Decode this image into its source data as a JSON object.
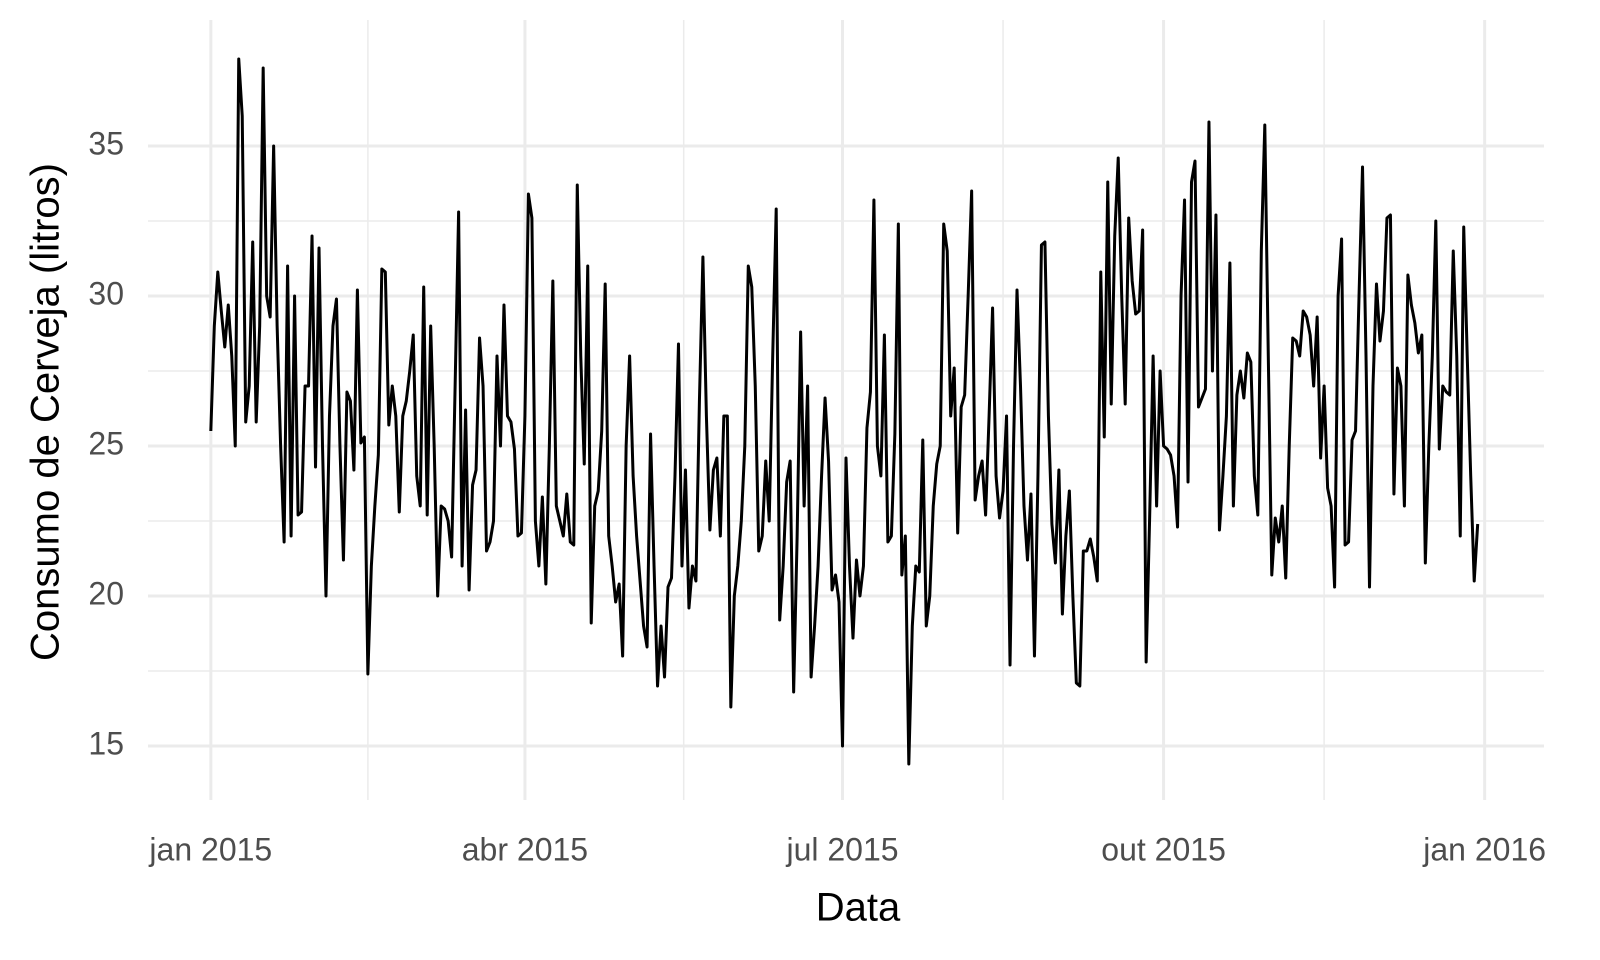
{
  "chart_data": {
    "type": "line",
    "x_label": "Data",
    "y_label": "Consumo de Cerveja (litros)",
    "color": "#000000",
    "grid": true,
    "x": [
      0,
      1,
      2,
      3,
      4,
      5,
      6,
      7,
      8,
      9,
      10,
      11,
      12,
      13,
      14,
      15,
      16,
      17,
      18,
      19,
      20,
      21,
      22,
      23,
      24,
      25,
      26,
      27,
      28,
      29,
      30,
      31,
      32,
      33,
      34,
      35,
      36,
      37,
      38,
      39,
      40,
      41,
      42,
      43,
      44,
      45,
      46,
      47,
      48,
      49,
      50,
      51,
      52,
      53,
      54,
      55,
      56,
      57,
      58,
      59,
      60,
      61,
      62,
      63,
      64,
      65,
      66,
      67,
      68,
      69,
      70,
      71,
      72,
      73,
      74,
      75,
      76,
      77,
      78,
      79,
      80,
      81,
      82,
      83,
      84,
      85,
      86,
      87,
      88,
      89,
      90,
      91,
      92,
      93,
      94,
      95,
      96,
      97,
      98,
      99,
      100,
      101,
      102,
      103,
      104,
      105,
      106,
      107,
      108,
      109,
      110,
      111,
      112,
      113,
      114,
      115,
      116,
      117,
      118,
      119,
      120,
      121,
      122,
      123,
      124,
      125,
      126,
      127,
      128,
      129,
      130,
      131,
      132,
      133,
      134,
      135,
      136,
      137,
      138,
      139,
      140,
      141,
      142,
      143,
      144,
      145,
      146,
      147,
      148,
      149,
      150,
      151,
      152,
      153,
      154,
      155,
      156,
      157,
      158,
      159,
      160,
      161,
      162,
      163,
      164,
      165,
      166,
      167,
      168,
      169,
      170,
      171,
      172,
      173,
      174,
      175,
      176,
      177,
      178,
      179,
      180,
      181,
      182,
      183,
      184,
      185,
      186,
      187,
      188,
      189,
      190,
      191,
      192,
      193,
      194,
      195,
      196,
      197,
      198,
      199,
      200,
      201,
      202,
      203,
      204,
      205,
      206,
      207,
      208,
      209,
      210,
      211,
      212,
      213,
      214,
      215,
      216,
      217,
      218,
      219,
      220,
      221,
      222,
      223,
      224,
      225,
      226,
      227,
      228,
      229,
      230,
      231,
      232,
      233,
      234,
      235,
      236,
      237,
      238,
      239,
      240,
      241,
      242,
      243,
      244,
      245,
      246,
      247,
      248,
      249,
      250,
      251,
      252,
      253,
      254,
      255,
      256,
      257,
      258,
      259,
      260,
      261,
      262,
      263,
      264,
      265,
      266,
      267,
      268,
      269,
      270,
      271,
      272,
      273,
      274,
      275,
      276,
      277,
      278,
      279,
      280,
      281,
      282,
      283,
      284,
      285,
      286,
      287,
      288,
      289,
      290,
      291,
      292,
      293,
      294,
      295,
      296,
      297,
      298,
      299,
      300,
      301,
      302,
      303,
      304,
      305,
      306,
      307,
      308,
      309,
      310,
      311,
      312,
      313,
      314,
      315,
      316,
      317,
      318,
      319,
      320,
      321,
      322,
      323,
      324,
      325,
      326,
      327,
      328,
      329,
      330,
      331,
      332,
      333,
      334,
      335,
      336,
      337,
      338,
      339,
      340,
      341,
      342,
      343,
      344,
      345,
      346,
      347,
      348,
      349,
      350,
      351,
      352,
      353,
      354,
      355,
      356,
      357,
      358,
      359,
      360,
      361,
      362,
      363
    ],
    "values": [
      25.5,
      29,
      30.8,
      29.5,
      28.3,
      29.7,
      28,
      25,
      37.9,
      36,
      25.8,
      27,
      31.8,
      25.8,
      29,
      37.6,
      30,
      29.3,
      35,
      29,
      25,
      21.8,
      31,
      22,
      30,
      22.7,
      22.8,
      27,
      27,
      32,
      24.3,
      31.6,
      25,
      20,
      26,
      29,
      29.9,
      25,
      21.2,
      26.8,
      26.5,
      24.2,
      30.2,
      25.1,
      25.3,
      17.4,
      21,
      23,
      24.7,
      30.9,
      30.8,
      25.7,
      27,
      26,
      22.8,
      26,
      26.5,
      27.5,
      28.7,
      24,
      23,
      30.3,
      22.7,
      29,
      25,
      20,
      23,
      22.9,
      22.5,
      21.3,
      27,
      32.8,
      21,
      26.2,
      20.2,
      23.7,
      24.2,
      28.6,
      27,
      21.5,
      21.8,
      22.5,
      28,
      25,
      29.7,
      26,
      25.8,
      24.9,
      22,
      22.1,
      26,
      33.4,
      32.6,
      22.5,
      21,
      23.3,
      20.4,
      25,
      30.5,
      23,
      22.5,
      22,
      23.4,
      21.8,
      21.7,
      33.7,
      28,
      24.4,
      31,
      19.1,
      23,
      23.5,
      25.5,
      30.4,
      22,
      21,
      19.8,
      20.4,
      18,
      25,
      28,
      24,
      22,
      20.5,
      19,
      18.3,
      25.4,
      21,
      17,
      19,
      17.3,
      20.3,
      20.6,
      24,
      28.4,
      21,
      24.2,
      19.6,
      21,
      20.5,
      26.5,
      31.3,
      26,
      22.2,
      24.2,
      24.6,
      22,
      26,
      26,
      16.3,
      20,
      21,
      22.5,
      25,
      31,
      30.3,
      27,
      21.5,
      22,
      24.5,
      22.5,
      28,
      32.9,
      19.2,
      21,
      23.8,
      24.5,
      16.8,
      22,
      28.8,
      23,
      27,
      17.3,
      19,
      21,
      24,
      26.6,
      24.5,
      20.2,
      20.7,
      19.8,
      15,
      24.6,
      21,
      18.6,
      21.2,
      20,
      21,
      25.6,
      26.8,
      33.2,
      25,
      24,
      28.7,
      21.8,
      22,
      25.4,
      32.4,
      20.7,
      22,
      14.4,
      19,
      21,
      20.8,
      25.2,
      19,
      20,
      23,
      24.4,
      25,
      32.4,
      31.5,
      26,
      27.6,
      22.1,
      26.3,
      26.7,
      30,
      33.5,
      23.2,
      24,
      24.5,
      22.7,
      26,
      29.6,
      24,
      22.6,
      23.5,
      26,
      17.7,
      25,
      30.2,
      27,
      23,
      21.2,
      23.4,
      18,
      24,
      31.7,
      31.8,
      26,
      22.4,
      21.1,
      24.2,
      19.4,
      22,
      23.5,
      20,
      17.1,
      17,
      21.5,
      21.5,
      21.9,
      21.3,
      20.5,
      30.8,
      25.3,
      33.8,
      26.4,
      32,
      34.6,
      30,
      26.4,
      32.6,
      30.5,
      29.4,
      29.5,
      32.2,
      17.8,
      22.6,
      28,
      23,
      27.5,
      25,
      24.9,
      24.7,
      24,
      22.3,
      30,
      33.2,
      23.8,
      33.8,
      34.5,
      26.3,
      26.6,
      26.9,
      35.8,
      27.5,
      32.7,
      22.2,
      24,
      26,
      31.1,
      23,
      26.7,
      27.5,
      26.6,
      28.1,
      27.8,
      24,
      22.7,
      31.5,
      35.7,
      28,
      20.7,
      22.6,
      21.8,
      23,
      20.6,
      25,
      28.6,
      28.5,
      28,
      29.5,
      29.3,
      28.7,
      27,
      29.3,
      24.6,
      27,
      23.6,
      23,
      20.3,
      30,
      31.9,
      21.7,
      21.8,
      25.2,
      25.5,
      30,
      34.3,
      28,
      20.3,
      27,
      30.4,
      28.5,
      29.5,
      32.6,
      32.7,
      23.4,
      27.6,
      27,
      23,
      30.7,
      29.7,
      29.1,
      28.1,
      28.7,
      21.1,
      25,
      28,
      32.5,
      24.9,
      27,
      26.8,
      26.7,
      31.5,
      28,
      22,
      32.3,
      28,
      24,
      20.5,
      22.4
    ],
    "xlim": [
      -18,
      382
    ],
    "xticks": [
      {
        "value": 0,
        "label": "jan 2015"
      },
      {
        "value": 90,
        "label": "abr 2015"
      },
      {
        "value": 181,
        "label": "jul 2015"
      },
      {
        "value": 273,
        "label": "out 2015"
      },
      {
        "value": 365,
        "label": "jan 2016"
      }
    ],
    "ylim": [
      13.2,
      39.2
    ],
    "yticks": [
      15,
      20,
      25,
      30,
      35
    ]
  }
}
